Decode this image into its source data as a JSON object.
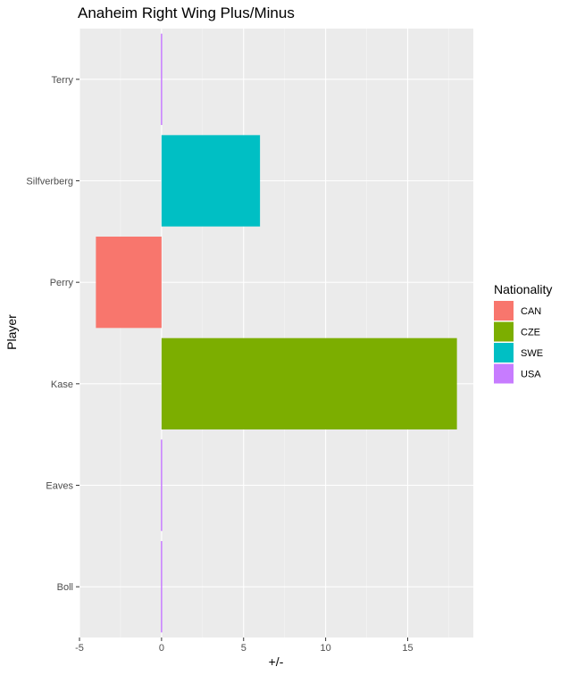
{
  "chart_data": {
    "type": "bar",
    "orientation": "horizontal",
    "title": "Anaheim Right Wing Plus/Minus",
    "xlabel": "+/-",
    "ylabel": "Player",
    "xlim": [
      -5,
      19
    ],
    "x_ticks": [
      -5,
      0,
      5,
      10,
      15
    ],
    "grid": true,
    "legend_position": "right",
    "legend_title": "Nationality",
    "categories": [
      "Boll",
      "Eaves",
      "Kase",
      "Perry",
      "Silfverberg",
      "Terry"
    ],
    "values": [
      0,
      0,
      18,
      -4,
      6,
      0
    ],
    "nationality": [
      "USA",
      "USA",
      "CZE",
      "CAN",
      "SWE",
      "USA"
    ],
    "legend": [
      {
        "name": "CAN",
        "color": "#F8766D"
      },
      {
        "name": "CZE",
        "color": "#7CAE00"
      },
      {
        "name": "SWE",
        "color": "#00BFC4"
      },
      {
        "name": "USA",
        "color": "#C77CFF"
      }
    ]
  }
}
